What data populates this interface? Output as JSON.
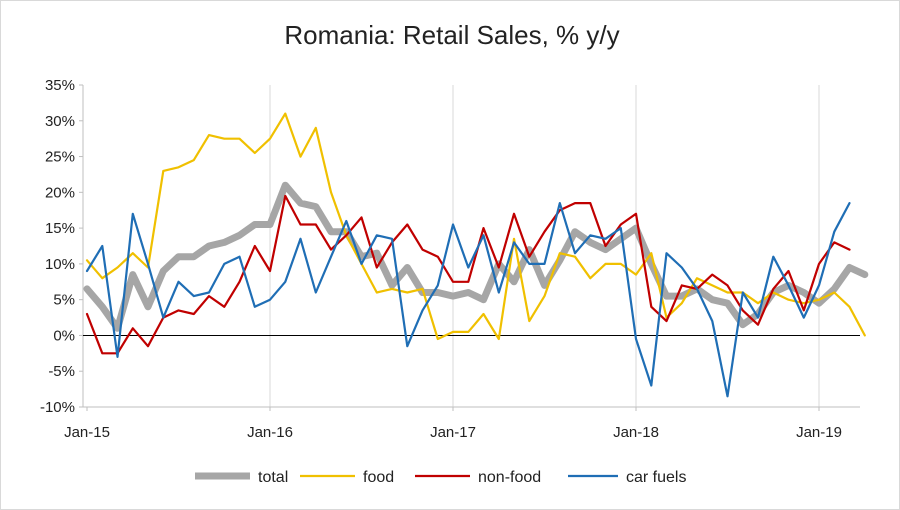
{
  "chart_data": {
    "type": "line",
    "title": "Romania: Retail Sales, % y/y",
    "xlabel": "",
    "ylabel": "",
    "ylim": [
      -10,
      35
    ],
    "y_ticks": [
      "35%",
      "30%",
      "25%",
      "20%",
      "15%",
      "10%",
      "5%",
      "0%",
      "-5%",
      "-10%"
    ],
    "y_tick_values": [
      35,
      30,
      25,
      20,
      15,
      10,
      5,
      0,
      -5,
      -10
    ],
    "x_tick_labels": [
      "Jan-15",
      "Jan-16",
      "Jan-17",
      "Jan-18",
      "Jan-19"
    ],
    "x_tick_index": [
      0,
      12,
      24,
      36,
      48
    ],
    "n_points": 52,
    "gridlines": "vertical",
    "legend_position": "bottom",
    "series": [
      {
        "name": "total",
        "color": "#a6a6a6",
        "values": [
          6.5,
          4,
          1,
          8.5,
          4,
          9,
          11,
          11,
          12.5,
          13,
          14,
          15.5,
          15.5,
          21,
          18.5,
          18,
          14.5,
          14.5,
          11,
          11.5,
          7,
          9.5,
          6,
          6,
          5.5,
          6,
          5,
          10,
          7.5,
          12,
          7,
          10.5,
          14.5,
          13,
          12,
          13.5,
          15,
          10,
          5.5,
          5.5,
          6.5,
          5,
          4.5,
          1.5,
          3,
          6,
          7,
          6,
          4.5,
          6.5,
          9.5,
          8.5
        ]
      },
      {
        "name": "food",
        "color": "#f0c000",
        "values": [
          10.5,
          8,
          9.5,
          11.5,
          9.5,
          23,
          23.5,
          24.5,
          28,
          27.5,
          27.5,
          25.5,
          27.5,
          31,
          25,
          29,
          20,
          14,
          10,
          6,
          6.5,
          6,
          6.5,
          -0.5,
          0.5,
          0.5,
          3,
          -0.5,
          13.5,
          2,
          5.5,
          11.5,
          11,
          8,
          10,
          10,
          8.5,
          11.5,
          2.5,
          4.5,
          8,
          7,
          6,
          6,
          4.5,
          6,
          5,
          4.5,
          5,
          6,
          4,
          0
        ]
      },
      {
        "name": "non-food",
        "color": "#c00000",
        "values": [
          3,
          -2.5,
          -2.5,
          1,
          -1.5,
          2.5,
          3.5,
          3,
          5.5,
          4,
          7.5,
          12.5,
          9,
          19.5,
          15.5,
          15.5,
          12,
          14,
          16.5,
          9.5,
          13,
          15.5,
          12,
          11,
          7.5,
          7.5,
          15,
          9.5,
          17,
          11,
          14.5,
          17.5,
          18.5,
          18.5,
          12.5,
          15.5,
          17,
          4,
          2,
          7,
          6.5,
          8.5,
          7,
          3.5,
          1.5,
          6.5,
          9,
          3.5,
          10,
          13,
          12,
          null
        ]
      },
      {
        "name": "car fuels",
        "color": "#1f6eb5",
        "values": [
          9,
          12.5,
          -3,
          17,
          10,
          2.5,
          7.5,
          5.5,
          6,
          10,
          11,
          4,
          5,
          7.5,
          13.5,
          6,
          11,
          16,
          10,
          14,
          13.5,
          -1.5,
          3.5,
          7,
          15.5,
          9.5,
          14,
          6,
          13,
          10,
          10,
          18.5,
          11.5,
          14,
          13.5,
          15,
          -0.5,
          -7,
          11.5,
          9.5,
          6.5,
          2,
          -8.5,
          6,
          2.5,
          11,
          7,
          2.5,
          7,
          14.5,
          18.5,
          null
        ]
      }
    ]
  }
}
